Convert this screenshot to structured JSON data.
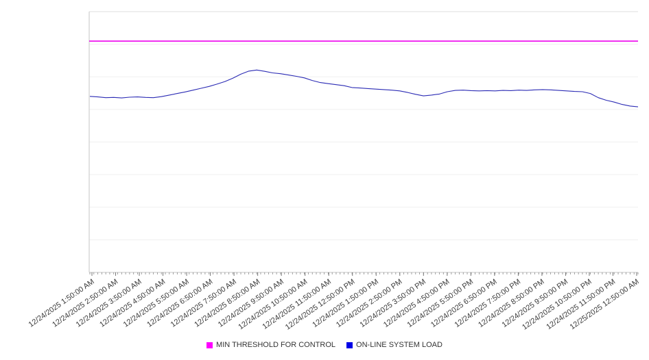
{
  "chart_data": {
    "type": "line",
    "title": "",
    "xlabel": "",
    "ylabel": "",
    "ylim": [
      0,
      100
    ],
    "grid_divisions": 8,
    "grid": true,
    "legend_position": "bottom",
    "x_labels": [
      "12/24/2025 1:50:00 AM",
      "12/24/2025 2:50:00 AM",
      "12/24/2025 3:50:00 AM",
      "12/24/2025 4:50:00 AM",
      "12/24/2025 5:50:00 AM",
      "12/24/2025 6:50:00 AM",
      "12/24/2025 7:50:00 AM",
      "12/24/2025 8:50:00 AM",
      "12/24/2025 9:50:00 AM",
      "12/24/2025 10:50:00 AM",
      "12/24/2025 11:50:00 AM",
      "12/24/2025 12:50:00 PM",
      "12/24/2025 1:50:00 PM",
      "12/24/2025 2:50:00 PM",
      "12/24/2025 3:50:00 PM",
      "12/24/2025 4:50:00 PM",
      "12/24/2025 5:50:00 PM",
      "12/24/2025 6:50:00 PM",
      "12/24/2025 7:50:00 PM",
      "12/24/2025 8:50:00 PM",
      "12/24/2025 9:50:00 PM",
      "12/24/2025 10:50:00 PM",
      "12/24/2025 11:50:00 PM",
      "12/25/2025 12:50:00 AM"
    ],
    "series": [
      {
        "name": "MIN THRESHOLD FOR CONTROL",
        "color": "#ee00ee",
        "legend_color": "#ff00ff",
        "threshold": 88.7
      },
      {
        "name": "ON-LINE SYSTEM LOAD",
        "color": "#2a2ab4",
        "legend_color": "#0000e6",
        "values": [
          67.5,
          67.3,
          67.0,
          67.1,
          66.9,
          67.2,
          67.3,
          67.1,
          67.0,
          67.4,
          68.0,
          68.6,
          69.2,
          69.9,
          70.6,
          71.3,
          72.2,
          73.2,
          74.5,
          76.0,
          77.2,
          77.6,
          77.1,
          76.5,
          76.2,
          75.7,
          75.2,
          74.6,
          73.6,
          72.8,
          72.4,
          72.0,
          71.6,
          70.9,
          70.7,
          70.5,
          70.3,
          70.1,
          69.9,
          69.6,
          69.0,
          68.3,
          67.7,
          68.0,
          68.4,
          69.3,
          69.8,
          69.9,
          69.7,
          69.6,
          69.7,
          69.6,
          69.8,
          69.7,
          69.9,
          69.8,
          70.0,
          70.1,
          70.0,
          69.8,
          69.6,
          69.4,
          69.3,
          68.6,
          67.0,
          66.0,
          65.3,
          64.4,
          63.8,
          63.5
        ]
      }
    ]
  }
}
